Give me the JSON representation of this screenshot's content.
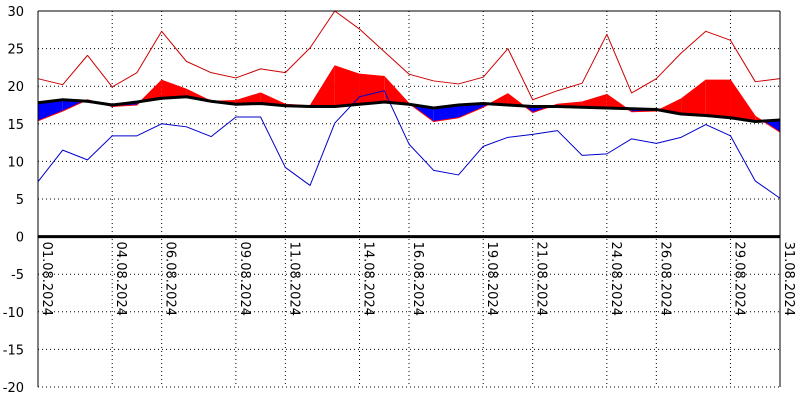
{
  "chart_data": {
    "type": "line",
    "title": "",
    "xlabel": "",
    "ylabel": "",
    "ylim": [
      -20,
      30
    ],
    "yticks": [
      30,
      25,
      20,
      15,
      10,
      5,
      0,
      -5,
      -10,
      -15,
      -20
    ],
    "ytick_labels": [
      "30",
      "25",
      "20",
      "15",
      "10",
      "5",
      "0",
      "-5",
      "-10",
      "-15",
      "-20"
    ],
    "grid": true,
    "legend": "none",
    "x_dates": [
      "01.08.2024",
      "02.08.2024",
      "03.08.2024",
      "04.08.2024",
      "05.08.2024",
      "06.08.2024",
      "07.08.2024",
      "08.08.2024",
      "09.08.2024",
      "10.08.2024",
      "11.08.2024",
      "12.08.2024",
      "13.08.2024",
      "14.08.2024",
      "15.08.2024",
      "16.08.2024",
      "17.08.2024",
      "18.08.2024",
      "19.08.2024",
      "20.08.2024",
      "21.08.2024",
      "22.08.2024",
      "23.08.2024",
      "24.08.2024",
      "25.08.2024",
      "26.08.2024",
      "27.08.2024",
      "28.08.2024",
      "29.08.2024",
      "30.08.2024",
      "31.08.2024"
    ],
    "x_tick_labels": [
      "01.08.2024",
      "04.08.2024",
      "06.08.2024",
      "09.08.2024",
      "11.08.2024",
      "14.08.2024",
      "16.08.2024",
      "19.08.2024",
      "21.08.2024",
      "24.08.2024",
      "26.08.2024",
      "29.08.2024",
      "31.08.2024"
    ],
    "series": [
      {
        "key": "max",
        "color": "#cc0000",
        "values": [
          21.0,
          20.2,
          24.1,
          19.9,
          21.8,
          27.3,
          23.3,
          21.8,
          21.1,
          22.3,
          21.8,
          25.1,
          30.0,
          27.6,
          24.6,
          21.6,
          20.7,
          20.3,
          21.2,
          25.0,
          18.2,
          19.4,
          20.4,
          26.9,
          19.1,
          21.0,
          24.4,
          27.3,
          26.1,
          20.6,
          21.0
        ]
      },
      {
        "key": "mean",
        "color": "#ff0000",
        "values": [
          15.4,
          16.7,
          18.2,
          17.3,
          17.5,
          20.8,
          19.6,
          18.0,
          18.1,
          19.1,
          17.6,
          17.4,
          22.7,
          21.6,
          21.3,
          17.7,
          15.3,
          15.8,
          17.2,
          19.0,
          16.5,
          17.6,
          17.9,
          18.9,
          16.6,
          16.7,
          18.3,
          20.8,
          20.8,
          16.0,
          13.9
        ]
      },
      {
        "key": "min",
        "color": "#0000cc",
        "values": [
          7.3,
          11.5,
          10.2,
          13.4,
          13.4,
          15.0,
          14.6,
          13.3,
          15.9,
          15.9,
          9.2,
          6.8,
          15.1,
          18.6,
          19.4,
          12.3,
          8.8,
          8.2,
          12.0,
          13.2,
          13.6,
          14.1,
          10.8,
          11.0,
          13.0,
          12.4,
          13.2,
          14.9,
          13.4,
          7.4,
          5.1
        ]
      },
      {
        "key": "normal",
        "color": "#000000",
        "values": [
          17.8,
          18.2,
          18.0,
          17.5,
          17.9,
          18.4,
          18.6,
          18.0,
          17.6,
          17.7,
          17.4,
          17.3,
          17.3,
          17.6,
          17.9,
          17.6,
          17.1,
          17.5,
          17.7,
          17.5,
          17.3,
          17.3,
          17.2,
          17.1,
          17.0,
          16.9,
          16.3,
          16.1,
          15.8,
          15.3,
          15.5
        ]
      }
    ],
    "fill_above_color": "#ff0000",
    "fill_below_color": "#0000ff"
  }
}
